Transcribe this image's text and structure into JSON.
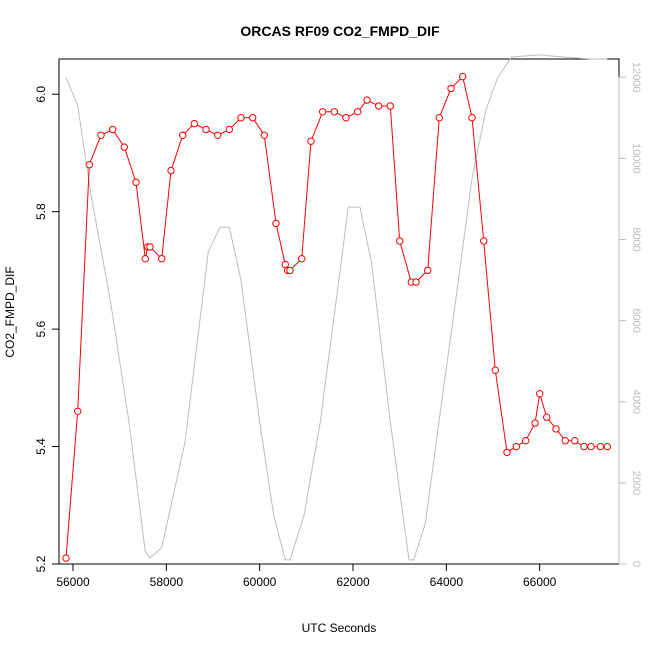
{
  "chart_data": {
    "type": "line",
    "title": "ORCAS RF09 CO2_FMPD_DIF",
    "xlabel": "UTC Seconds",
    "ylabel": "CO2_FMPD_DIF",
    "xlim": [
      55700,
      67700
    ],
    "ylim": [
      5.2,
      6.06
    ],
    "y2lim": [
      0,
      12450
    ],
    "x_ticks": [
      56000,
      58000,
      60000,
      62000,
      64000,
      66000
    ],
    "y_ticks": [
      5.2,
      5.4,
      5.6,
      5.8,
      6.0
    ],
    "y2_ticks": [
      0,
      2000,
      4000,
      6000,
      8000,
      10000,
      12000
    ],
    "colors": {
      "primary": "#ff0000",
      "secondary": "#bdbdbd"
    },
    "series": [
      {
        "axis": "left",
        "x": [
          55850,
          56100,
          56350,
          56600,
          56850,
          57100,
          57350,
          57550,
          57600,
          57650,
          57900,
          58100,
          58350,
          58600,
          58850,
          59100,
          59350,
          59600,
          59850,
          60100,
          60350,
          60550,
          60600,
          60650,
          60900,
          61100,
          61350,
          61600,
          61850,
          62100,
          62300,
          62550,
          62800,
          63000,
          63250,
          63350,
          63600,
          63850,
          64100,
          64350,
          64550,
          64800,
          65050,
          65300,
          65500,
          65700,
          65900,
          66000,
          66150,
          66350,
          66550,
          66750,
          66950,
          67100,
          67300,
          67450
        ],
        "y": [
          5.21,
          5.46,
          5.88,
          5.93,
          5.94,
          5.91,
          5.85,
          5.72,
          5.74,
          5.74,
          5.72,
          5.87,
          5.93,
          5.95,
          5.94,
          5.93,
          5.94,
          5.96,
          5.96,
          5.93,
          5.78,
          5.71,
          5.7,
          5.7,
          5.72,
          5.92,
          5.97,
          5.97,
          5.96,
          5.97,
          5.99,
          5.98,
          5.98,
          5.75,
          5.68,
          5.68,
          5.7,
          5.96,
          6.01,
          6.03,
          5.96,
          5.75,
          5.53,
          5.39,
          5.4,
          5.41,
          5.44,
          5.49,
          5.45,
          5.43,
          5.41,
          5.41,
          5.4,
          5.4,
          5.4,
          5.4
        ]
      },
      {
        "axis": "right",
        "x": [
          55850,
          56100,
          56400,
          56800,
          57200,
          57550,
          57650,
          57900,
          58400,
          58900,
          59150,
          59350,
          59600,
          60000,
          60300,
          60550,
          60650,
          60950,
          61300,
          61900,
          62150,
          62400,
          62800,
          63200,
          63300,
          63550,
          63900,
          64200,
          64550,
          64850,
          65100,
          65400,
          66000,
          66500,
          67100,
          67450
        ],
        "y": [
          12000,
          11300,
          9000,
          6500,
          3500,
          300,
          150,
          400,
          3000,
          7700,
          8300,
          8300,
          7000,
          3500,
          1200,
          100,
          100,
          1200,
          3500,
          8800,
          8800,
          7400,
          3500,
          100,
          100,
          1000,
          4000,
          6500,
          9500,
          11200,
          12000,
          12500,
          12550,
          12500,
          12450,
          12450
        ]
      }
    ]
  }
}
